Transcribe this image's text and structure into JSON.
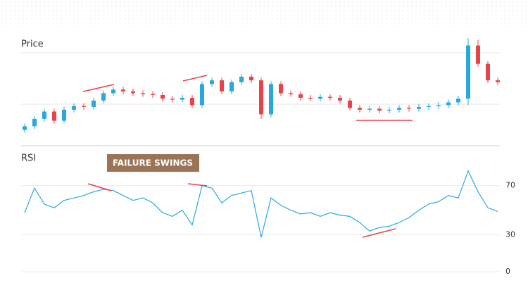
{
  "chart_data": [
    {
      "type": "candlestick",
      "title": "Price",
      "ylim": [
        0,
        115
      ],
      "up_color": "#29a8e0",
      "down_color": "#e8434a",
      "open": [
        8,
        12,
        20,
        28,
        18,
        30,
        34,
        33,
        40,
        48,
        52,
        50,
        48,
        47,
        46,
        42,
        41,
        43,
        35,
        58,
        62,
        50,
        60,
        66,
        62,
        25,
        58,
        48,
        47,
        43,
        42,
        44,
        43,
        40,
        32,
        30,
        31,
        29,
        30,
        32,
        31,
        33,
        34,
        35,
        38,
        42,
        100,
        80,
        62
      ],
      "high": [
        15,
        23,
        31,
        31,
        33,
        37,
        37,
        43,
        51,
        55,
        55,
        53,
        51,
        50,
        49,
        45,
        46,
        46,
        61,
        65,
        65,
        63,
        69,
        69,
        65,
        61,
        61,
        51,
        50,
        46,
        47,
        47,
        46,
        43,
        35,
        34,
        34,
        33,
        35,
        35,
        36,
        37,
        38,
        41,
        45,
        108,
        106,
        83,
        65
      ],
      "low": [
        5,
        9,
        17,
        15,
        15,
        27,
        30,
        30,
        37,
        45,
        47,
        45,
        44,
        43,
        39,
        38,
        38,
        32,
        32,
        55,
        47,
        47,
        57,
        59,
        20,
        22,
        45,
        44,
        40,
        39,
        39,
        40,
        37,
        29,
        27,
        27,
        26,
        26,
        27,
        28,
        28,
        30,
        31,
        32,
        35,
        35,
        77,
        59,
        57
      ],
      "close": [
        12,
        20,
        28,
        18,
        30,
        34,
        33,
        40,
        48,
        52,
        50,
        48,
        47,
        46,
        42,
        41,
        43,
        35,
        58,
        62,
        50,
        60,
        66,
        62,
        25,
        58,
        48,
        47,
        43,
        42,
        44,
        43,
        40,
        32,
        30,
        31,
        29,
        30,
        32,
        31,
        33,
        34,
        35,
        38,
        42,
        100,
        80,
        62,
        60
      ]
    },
    {
      "type": "line",
      "title": "RSI",
      "annotation": "FAILURE SWINGS",
      "color": "#29a8e0",
      "ylim": [
        0,
        95
      ],
      "yticks": [
        70,
        30,
        0
      ],
      "grid": true,
      "values": [
        48,
        68,
        55,
        52,
        58,
        60,
        62,
        65,
        67,
        66,
        62,
        58,
        60,
        56,
        48,
        45,
        50,
        38,
        70,
        68,
        56,
        62,
        64,
        66,
        28,
        60,
        54,
        50,
        47,
        48,
        45,
        48,
        46,
        45,
        40,
        33,
        36,
        37,
        40,
        44,
        50,
        55,
        57,
        62,
        60,
        82,
        65,
        52,
        49
      ]
    }
  ]
}
